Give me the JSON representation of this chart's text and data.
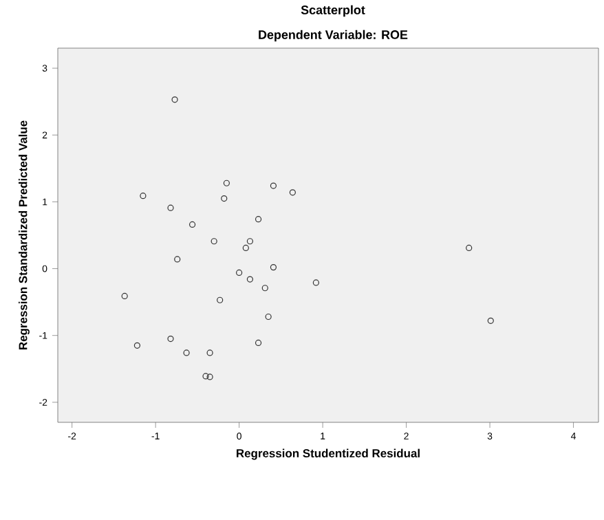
{
  "chart_data": {
    "type": "scatter",
    "title": "Scatterplot",
    "subtitle": "Dependent Variable: ROE",
    "xlabel": "Regression Studentized Residual",
    "ylabel": "Regression Standardized Predicted Value",
    "x": [
      -0.77,
      -0.15,
      0.41,
      0.64,
      -1.15,
      -0.18,
      -0.82,
      0.23,
      -0.56,
      0.13,
      -0.3,
      0.08,
      -0.74,
      0.0,
      0.41,
      0.13,
      0.31,
      0.92,
      -1.37,
      -0.23,
      0.35,
      -0.82,
      -1.22,
      0.23,
      -0.63,
      -0.35,
      -0.4,
      -0.35,
      2.75,
      3.01
    ],
    "values": [
      2.53,
      1.28,
      1.24,
      1.14,
      1.09,
      1.05,
      0.91,
      0.74,
      0.66,
      0.41,
      0.41,
      0.31,
      0.14,
      -0.06,
      0.02,
      -0.16,
      -0.29,
      -0.21,
      -0.41,
      -0.47,
      -0.72,
      -1.05,
      -1.15,
      -1.11,
      -1.26,
      -1.26,
      -1.61,
      -1.62,
      0.31,
      -0.78
    ],
    "color": "#333333",
    "marker": "circle",
    "xlim": [
      -2.17,
      4.3
    ],
    "ylim": [
      -2.3,
      3.3
    ],
    "xticks": [
      -2,
      -1,
      0,
      1,
      2,
      3,
      4
    ],
    "yticks": [
      -2,
      -1,
      0,
      1,
      2,
      3
    ]
  }
}
